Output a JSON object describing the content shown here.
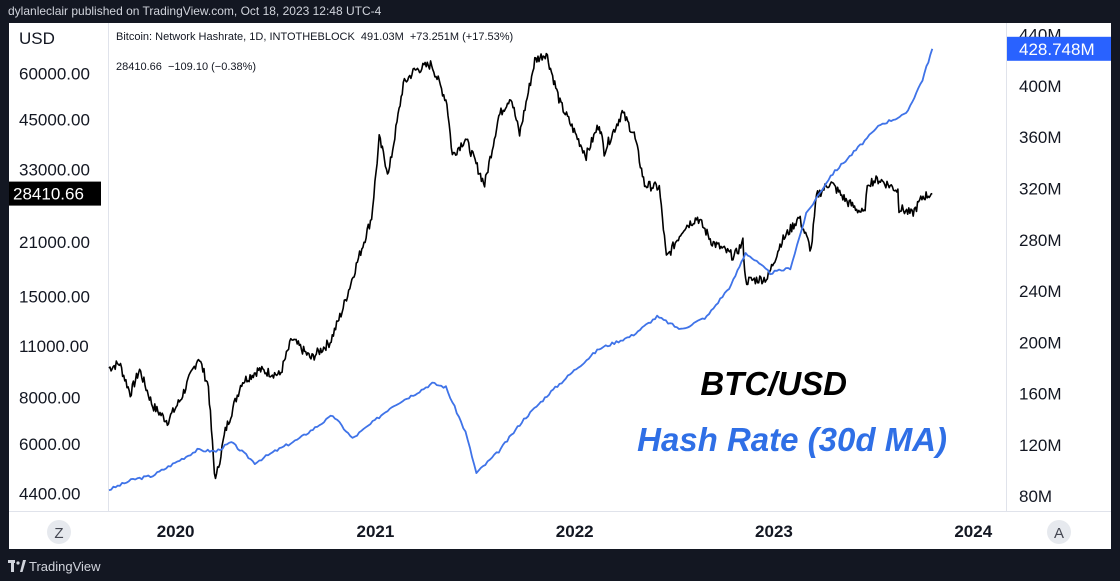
{
  "header": {
    "publisher_line": "dylanleclair published on TradingView.com, Oct 18, 2023 12:48 UTC-4"
  },
  "footer": {
    "brand": "TradingView"
  },
  "colors": {
    "background": "#131722",
    "panel": "#ffffff",
    "price_line": "#000000",
    "hashrate_line": "#3f73e8",
    "hashrate_badge": "#2962ff",
    "price_badge": "#000000"
  },
  "chart_data": {
    "type": "line",
    "legend": {
      "line1": "Bitcoin: Network Hashrate, 1D, INTOTHEBLOCK  491.03M  +73.251M (+17.53%)",
      "line2": "28410.66  −109.10 (−0.38%)"
    },
    "left_axis": {
      "unit_label": "USD",
      "scale": "log",
      "ticks": [
        "60000.00",
        "45000.00",
        "33000.00",
        "21000.00",
        "15000.00",
        "11000.00",
        "8000.00",
        "6000.00",
        "4400.00"
      ],
      "tick_values": [
        60000,
        45000,
        33000,
        21000,
        15000,
        11000,
        8000,
        6000,
        4400
      ],
      "last_value_label": "28410.66",
      "range": [
        4000,
        80000
      ]
    },
    "right_axis": {
      "ticks": [
        "440M",
        "400M",
        "360M",
        "320M",
        "280M",
        "240M",
        "200M",
        "160M",
        "120M",
        "80M"
      ],
      "tick_values": [
        440,
        400,
        360,
        320,
        280,
        240,
        200,
        160,
        120,
        80
      ],
      "last_value_label": "428.748M",
      "range": [
        70,
        446
      ]
    },
    "x_axis": {
      "ticks": [
        "2020",
        "2021",
        "2022",
        "2023",
        "2024"
      ],
      "tick_dates": [
        "2020-01-01",
        "2021-01-01",
        "2022-01-01",
        "2023-01-01",
        "2024-01-01"
      ],
      "range": [
        "2019-09-01",
        "2024-03-01"
      ]
    },
    "corner_buttons": {
      "left": "Z",
      "right": "A"
    },
    "series": [
      {
        "name": "BTC/USD",
        "color": "#000000",
        "axis": "left",
        "points": [
          [
            "2019-09-01",
            9600
          ],
          [
            "2019-09-20",
            9900
          ],
          [
            "2019-10-10",
            8200
          ],
          [
            "2019-10-27",
            9500
          ],
          [
            "2019-11-20",
            7600
          ],
          [
            "2019-12-17",
            6900
          ],
          [
            "2020-01-10",
            7900
          ],
          [
            "2020-02-12",
            10300
          ],
          [
            "2020-03-01",
            8600
          ],
          [
            "2020-03-12",
            5000
          ],
          [
            "2020-03-16",
            4900
          ],
          [
            "2020-04-01",
            6500
          ],
          [
            "2020-05-01",
            8800
          ],
          [
            "2020-06-01",
            9500
          ],
          [
            "2020-07-10",
            9200
          ],
          [
            "2020-08-01",
            11500
          ],
          [
            "2020-09-05",
            10200
          ],
          [
            "2020-10-10",
            11300
          ],
          [
            "2020-11-01",
            13700
          ],
          [
            "2020-12-01",
            19000
          ],
          [
            "2020-12-25",
            24500
          ],
          [
            "2021-01-08",
            40000
          ],
          [
            "2021-01-25",
            32000
          ],
          [
            "2021-02-21",
            56000
          ],
          [
            "2021-03-13",
            61000
          ],
          [
            "2021-04-14",
            63500
          ],
          [
            "2021-05-12",
            50000
          ],
          [
            "2021-05-22",
            36000
          ],
          [
            "2021-06-15",
            40000
          ],
          [
            "2021-07-20",
            30000
          ],
          [
            "2021-08-15",
            46000
          ],
          [
            "2021-09-06",
            52000
          ],
          [
            "2021-09-22",
            41000
          ],
          [
            "2021-10-20",
            65000
          ],
          [
            "2021-11-10",
            68000
          ],
          [
            "2021-12-05",
            50000
          ],
          [
            "2022-01-22",
            36000
          ],
          [
            "2022-02-15",
            44000
          ],
          [
            "2022-02-24",
            37000
          ],
          [
            "2022-03-29",
            47000
          ],
          [
            "2022-04-20",
            41000
          ],
          [
            "2022-05-09",
            30000
          ],
          [
            "2022-06-05",
            29500
          ],
          [
            "2022-06-18",
            19000
          ],
          [
            "2022-07-20",
            23000
          ],
          [
            "2022-08-14",
            24500
          ],
          [
            "2022-09-10",
            21000
          ],
          [
            "2022-10-20",
            19200
          ],
          [
            "2022-11-05",
            21000
          ],
          [
            "2022-11-10",
            16500
          ],
          [
            "2022-12-20",
            16800
          ],
          [
            "2023-01-14",
            21000
          ],
          [
            "2023-02-16",
            24500
          ],
          [
            "2023-03-10",
            20000
          ],
          [
            "2023-03-20",
            28000
          ],
          [
            "2023-04-14",
            30500
          ],
          [
            "2023-05-15",
            27000
          ],
          [
            "2023-06-15",
            25000
          ],
          [
            "2023-06-23",
            30500
          ],
          [
            "2023-07-13",
            31000
          ],
          [
            "2023-08-16",
            29000
          ],
          [
            "2023-08-18",
            26000
          ],
          [
            "2023-09-11",
            25000
          ],
          [
            "2023-10-01",
            27900
          ],
          [
            "2023-10-18",
            28410
          ]
        ]
      },
      {
        "name": "Hash Rate (30d MA)",
        "color": "#3f73e8",
        "axis": "right",
        "points": [
          [
            "2019-09-01",
            85
          ],
          [
            "2019-10-15",
            93
          ],
          [
            "2019-11-20",
            96
          ],
          [
            "2019-12-31",
            106
          ],
          [
            "2020-02-10",
            116
          ],
          [
            "2020-03-15",
            115
          ],
          [
            "2020-04-12",
            122
          ],
          [
            "2020-05-25",
            106
          ],
          [
            "2020-07-01",
            115
          ],
          [
            "2020-08-15",
            125
          ],
          [
            "2020-10-15",
            143
          ],
          [
            "2020-11-20",
            125
          ],
          [
            "2020-12-31",
            139
          ],
          [
            "2021-01-31",
            150
          ],
          [
            "2021-03-15",
            160
          ],
          [
            "2021-04-15",
            168
          ],
          [
            "2021-05-10",
            165
          ],
          [
            "2021-06-15",
            130
          ],
          [
            "2021-07-05",
            98
          ],
          [
            "2021-08-15",
            115
          ],
          [
            "2021-09-30",
            140
          ],
          [
            "2021-11-15",
            160
          ],
          [
            "2021-12-31",
            178
          ],
          [
            "2022-02-15",
            195
          ],
          [
            "2022-04-15",
            205
          ],
          [
            "2022-06-01",
            220
          ],
          [
            "2022-07-15",
            210
          ],
          [
            "2022-08-31",
            220
          ],
          [
            "2022-10-15",
            245
          ],
          [
            "2022-11-10",
            270
          ],
          [
            "2022-12-25",
            254
          ],
          [
            "2023-01-31",
            258
          ],
          [
            "2023-03-01",
            300
          ],
          [
            "2023-04-15",
            330
          ],
          [
            "2023-05-31",
            350
          ],
          [
            "2023-07-15",
            370
          ],
          [
            "2023-08-31",
            378
          ],
          [
            "2023-09-30",
            405
          ],
          [
            "2023-10-18",
            429
          ]
        ]
      }
    ],
    "annotations": [
      {
        "text": "BTC/USD",
        "color": "#000000"
      },
      {
        "text": "Hash Rate (30d MA)",
        "color": "#2f6fe6"
      }
    ]
  }
}
